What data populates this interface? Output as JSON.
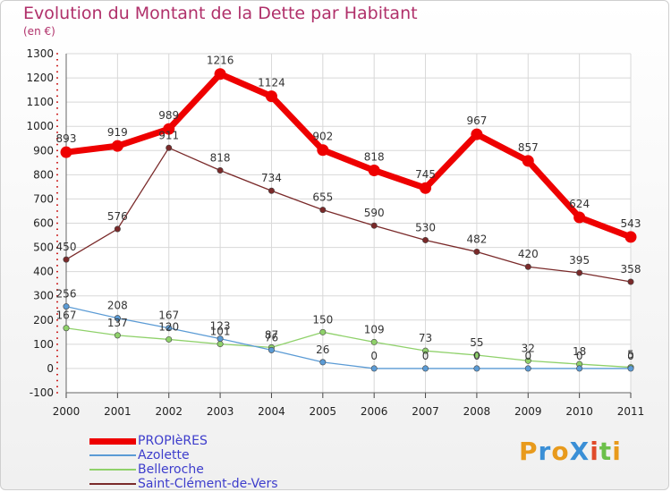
{
  "title": "Evolution du Montant de la Dette par Habitant",
  "subtitle": "(en €)",
  "logo": {
    "text": "ProXiti",
    "colors": [
      "#e89a1c",
      "#3a8fd6",
      "#6cc04a",
      "#e04a2a"
    ]
  },
  "chart_data": {
    "type": "line",
    "title": "Evolution du Montant de la Dette par Habitant",
    "subtitle": "(en €)",
    "xlabel": "",
    "ylabel": "",
    "ylim": [
      -100,
      1300
    ],
    "yticks": [
      -100,
      0,
      100,
      200,
      300,
      400,
      500,
      600,
      700,
      800,
      900,
      1000,
      1100,
      1200,
      1300
    ],
    "categories": [
      "2000",
      "2001",
      "2002",
      "2003",
      "2004",
      "2005",
      "2006",
      "2007",
      "2008",
      "2009",
      "2010",
      "2011"
    ],
    "grid": true,
    "legend_position": "bottom-left",
    "series": [
      {
        "name": "PROPIèRES",
        "color": "#ee0000",
        "values": [
          893,
          919,
          989,
          1216,
          1124,
          902,
          818,
          745,
          967,
          857,
          624,
          543
        ],
        "labels": [
          "893",
          "919",
          "989",
          "1216",
          "1124",
          "902",
          "818",
          "745",
          "967",
          "857",
          "624",
          "543"
        ]
      },
      {
        "name": "Azolette",
        "color": "#5b9bd5",
        "values": [
          256,
          208,
          167,
          123,
          76,
          26,
          0,
          0,
          0,
          0,
          0,
          0
        ],
        "labels": [
          "256",
          "208",
          "167",
          "123",
          "76",
          "26",
          "0",
          "0",
          "0",
          "0",
          "0",
          "0"
        ]
      },
      {
        "name": "Belleroche",
        "color": "#8fd16a",
        "values": [
          167,
          137,
          120,
          101,
          87,
          150,
          109,
          73,
          55,
          32,
          18,
          5
        ],
        "labels": [
          "167",
          "137",
          "120",
          "101",
          "87",
          "150",
          "109",
          "73",
          "55",
          "32",
          "18",
          "5"
        ]
      },
      {
        "name": "Saint-Clément-de-Vers",
        "color": "#7a2a2a",
        "values": [
          450,
          576,
          911,
          818,
          734,
          655,
          590,
          530,
          482,
          420,
          395,
          358
        ],
        "labels": [
          "450",
          "576",
          "911",
          "818",
          "734",
          "655",
          "590",
          "530",
          "482",
          "420",
          "395",
          "358"
        ]
      }
    ]
  }
}
